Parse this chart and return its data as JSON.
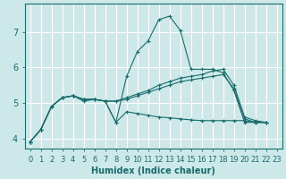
{
  "xlabel": "Humidex (Indice chaleur)",
  "ylabel": "",
  "bg_color": "#cce8e8",
  "grid_color": "#ffffff",
  "line_color": "#1a6b6b",
  "xlim": [
    -0.5,
    23.5
  ],
  "ylim": [
    3.7,
    7.8
  ],
  "xticks": [
    0,
    1,
    2,
    3,
    4,
    5,
    6,
    7,
    8,
    9,
    10,
    11,
    12,
    13,
    14,
    15,
    16,
    17,
    18,
    19,
    20,
    21,
    22,
    23
  ],
  "yticks": [
    4,
    5,
    6,
    7
  ],
  "series": [
    {
      "x": [
        0,
        1,
        2,
        3,
        4,
        5,
        6,
        7,
        8,
        9,
        10,
        11,
        12,
        13,
        14,
        15,
        16,
        17,
        18,
        19,
        20,
        21,
        22
      ],
      "y": [
        3.9,
        4.25,
        4.9,
        5.15,
        5.2,
        5.05,
        5.1,
        5.05,
        4.45,
        5.75,
        6.45,
        6.75,
        7.35,
        7.45,
        7.05,
        5.95,
        5.95,
        5.95,
        5.85,
        5.35,
        4.45,
        4.45,
        4.45
      ]
    },
    {
      "x": [
        0,
        1,
        2,
        3,
        4,
        5,
        6,
        7,
        8,
        9,
        10,
        11,
        12,
        13,
        14,
        15,
        16,
        17,
        18,
        19,
        20,
        21,
        22
      ],
      "y": [
        3.9,
        4.25,
        4.9,
        5.15,
        5.2,
        5.1,
        5.1,
        5.05,
        5.05,
        5.15,
        5.25,
        5.35,
        5.5,
        5.6,
        5.7,
        5.75,
        5.8,
        5.9,
        5.95,
        5.5,
        4.6,
        4.5,
        4.45
      ]
    },
    {
      "x": [
        0,
        1,
        2,
        3,
        4,
        5,
        6,
        7,
        8,
        9,
        10,
        11,
        12,
        13,
        14,
        15,
        16,
        17,
        18,
        19,
        20,
        21,
        22
      ],
      "y": [
        3.9,
        4.25,
        4.9,
        5.15,
        5.2,
        5.1,
        5.1,
        5.05,
        5.05,
        5.1,
        5.2,
        5.3,
        5.4,
        5.5,
        5.6,
        5.65,
        5.7,
        5.75,
        5.8,
        5.4,
        4.55,
        4.45,
        4.45
      ]
    },
    {
      "x": [
        0,
        1,
        2,
        3,
        4,
        5,
        6,
        7,
        8,
        9,
        10,
        11,
        12,
        13,
        14,
        15,
        16,
        17,
        18,
        19,
        20,
        21,
        22
      ],
      "y": [
        3.9,
        4.25,
        4.9,
        5.15,
        5.2,
        5.1,
        5.1,
        5.05,
        4.45,
        4.75,
        4.7,
        4.65,
        4.6,
        4.58,
        4.55,
        4.52,
        4.5,
        4.5,
        4.5,
        4.5,
        4.5,
        4.45,
        4.45
      ]
    }
  ]
}
